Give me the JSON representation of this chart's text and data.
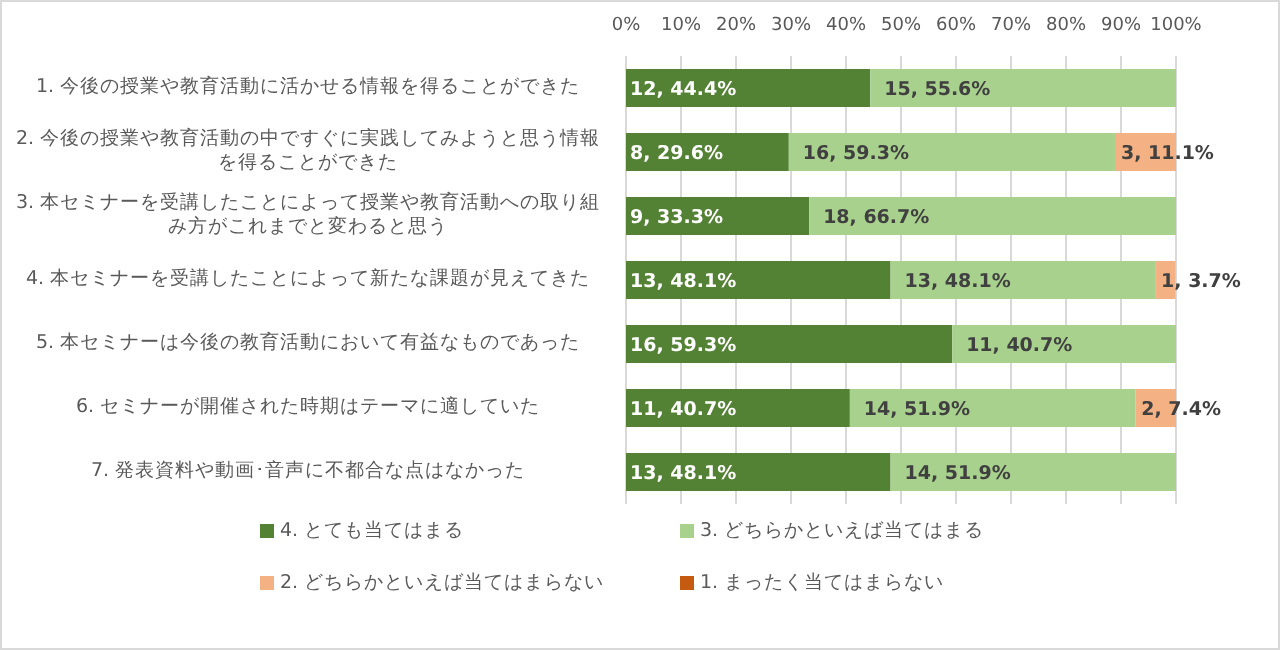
{
  "chart_data": {
    "type": "bar",
    "orientation": "horizontal",
    "stacked": true,
    "categories": [
      "1. 今後の授業や教育活動に活かせる情報を得ることができた",
      "2. 今後の授業や教育活動の中ですぐに実践してみようと思う情報を得ることができた",
      "3. 本セミナーを受講したことによって授業や教育活動への取り組み方がこれまでと変わると思う",
      "4. 本セミナーを受講したことによって新たな課題が見えてきた",
      "5. 本セミナーは今後の教育活動において有益なものであった",
      "6. セミナーが開催された時期はテーマに適していた",
      "7. 発表資料や動画･音声に不都合な点はなかった"
    ],
    "series": [
      {
        "name": "4. とても当てはまる",
        "color": "#548235",
        "values": [
          44.4,
          29.6,
          33.3,
          48.1,
          59.3,
          40.7,
          48.1
        ],
        "value_labels": [
          "12, 44.4%",
          "8, 29.6%",
          "9, 33.3%",
          "13, 48.1%",
          "16, 59.3%",
          "11, 40.7%",
          "13, 48.1%"
        ]
      },
      {
        "name": "3. どちらかといえば当てはまる",
        "color": "#a9d18e",
        "values": [
          55.6,
          59.3,
          66.7,
          48.1,
          40.7,
          51.9,
          51.9
        ],
        "value_labels": [
          "15, 55.6%",
          "16, 59.3%",
          "18, 66.7%",
          "13, 48.1%",
          "11, 40.7%",
          "14, 51.9%",
          "14, 51.9%"
        ]
      },
      {
        "name": "2. どちらかといえば当てはまらない",
        "color": "#f4b183",
        "values": [
          null,
          11.1,
          null,
          3.7,
          null,
          7.4,
          null
        ],
        "value_labels": [
          null,
          "3, 11.1%",
          null,
          "1, 3.7%",
          null,
          "2, 7.4%",
          null
        ]
      },
      {
        "name": "1. まったく当てはまらない",
        "color": "#c55a11",
        "values": [
          null,
          null,
          null,
          null,
          null,
          null,
          null
        ]
      }
    ],
    "xlim": [
      0,
      100
    ],
    "xticks": [
      {
        "value": 0,
        "label": "0%"
      },
      {
        "value": 10,
        "label": "10%"
      },
      {
        "value": 20,
        "label": "20%"
      },
      {
        "value": 30,
        "label": "30%"
      },
      {
        "value": 40,
        "label": "40%"
      },
      {
        "value": 50,
        "label": "50%"
      },
      {
        "value": 60,
        "label": "60%"
      },
      {
        "value": 70,
        "label": "70%"
      },
      {
        "value": 80,
        "label": "80%"
      },
      {
        "value": 90,
        "label": "90%"
      },
      {
        "value": 100,
        "label": "100%"
      }
    ],
    "grid": "x",
    "legend": "bottom"
  }
}
